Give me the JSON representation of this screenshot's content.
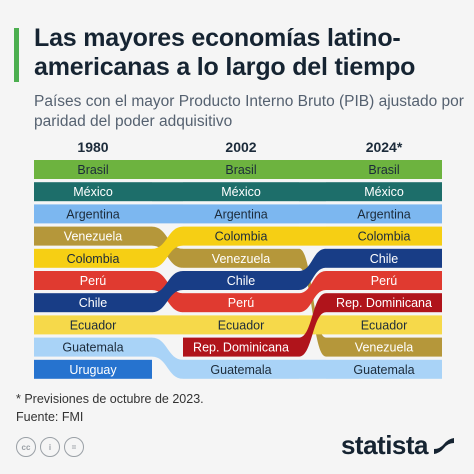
{
  "header": {
    "title": "Las mayores economías latino-americanas a lo largo del tiempo",
    "subtitle": "Países con el mayor Producto Interno Bruto (PIB) ajustado por paridad del poder adquisitivo"
  },
  "footer": {
    "note": "* Previsiones de octubre de 2023.",
    "source": "Fuente: FMI",
    "brand": "statista",
    "license_icons": [
      "creative-commons-icon",
      "attribution-icon",
      "no-derivatives-icon"
    ]
  },
  "chart_data": {
    "type": "bump",
    "columns": [
      "1980",
      "2002",
      "2024*"
    ],
    "rankings": [
      [
        "Brasil",
        "México",
        "Argentina",
        "Venezuela",
        "Colombia",
        "Perú",
        "Chile",
        "Ecuador",
        "Guatemala",
        "Uruguay"
      ],
      [
        "Brasil",
        "México",
        "Argentina",
        "Colombia",
        "Venezuela",
        "Chile",
        "Perú",
        "Ecuador",
        "Rep. Dominicana",
        "Guatemala"
      ],
      [
        "Brasil",
        "México",
        "Argentina",
        "Colombia",
        "Chile",
        "Perú",
        "Rep. Dominicana",
        "Ecuador",
        "Venezuela",
        "Guatemala"
      ]
    ],
    "colors": {
      "Brasil": "#6db33f",
      "México": "#1d6e6a",
      "Argentina": "#7cb7f0",
      "Venezuela": "#b5973a",
      "Colombia": "#f6cf14",
      "Perú": "#e03a30",
      "Chile": "#183d86",
      "Ecuador": "#f6d94a",
      "Guatemala": "#a9d3f7",
      "Uruguay": "#2673cf",
      "Rep. Dominicana": "#b0141b"
    },
    "text_colors": {
      "Brasil": "#1c2b3a",
      "México": "#ffffff",
      "Argentina": "#1c2b3a",
      "Venezuela": "#ffffff",
      "Colombia": "#1c2b3a",
      "Perú": "#ffffff",
      "Chile": "#ffffff",
      "Ecuador": "#1c2b3a",
      "Guatemala": "#1c2b3a",
      "Uruguay": "#ffffff",
      "Rep. Dominicana": "#ffffff"
    }
  }
}
